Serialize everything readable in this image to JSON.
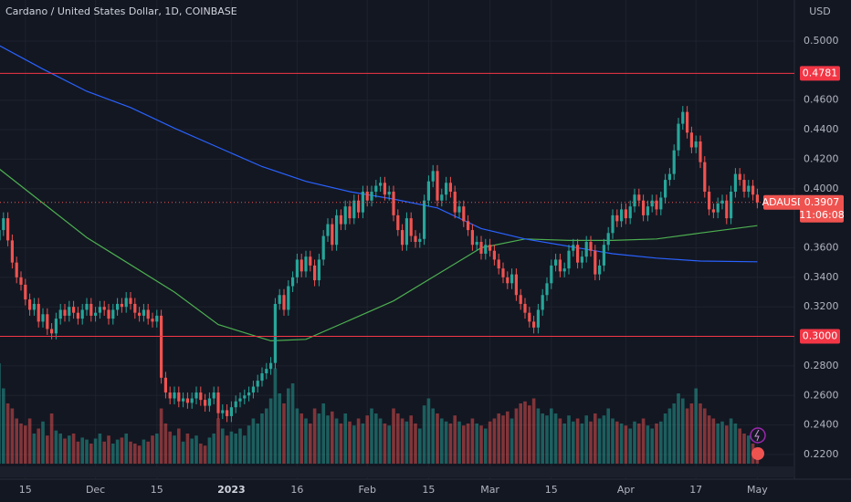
{
  "chart_data": {
    "type": "candlestick",
    "title": "Cardano / United States Dollar, 1D, COINBASE",
    "currency": "USD",
    "categories": [
      null,
      null,
      null,
      null,
      null,
      null,
      "15",
      null,
      null,
      null,
      null,
      null,
      null,
      null,
      null,
      null,
      null,
      null,
      null,
      null,
      null,
      null,
      "Dec",
      null,
      null,
      null,
      null,
      null,
      null,
      null,
      null,
      null,
      null,
      null,
      null,
      null,
      "15",
      null,
      null,
      null,
      null,
      null,
      null,
      null,
      null,
      null,
      null,
      null,
      null,
      null,
      null,
      null,
      null,
      "2023",
      null,
      null,
      null,
      null,
      null,
      null,
      null,
      null,
      null,
      null,
      null,
      null,
      null,
      null,
      "16",
      null,
      null,
      null,
      null,
      null,
      null,
      null,
      null,
      null,
      null,
      null,
      null,
      null,
      null,
      null,
      "Feb",
      null,
      null,
      null,
      null,
      null,
      null,
      null,
      null,
      null,
      null,
      null,
      null,
      null,
      "15",
      null,
      null,
      null,
      null,
      null,
      null,
      null,
      null,
      null,
      null,
      null,
      null,
      null,
      "Mar",
      null,
      null,
      null,
      null,
      null,
      null,
      null,
      null,
      null,
      null,
      null,
      null,
      null,
      "15",
      null,
      null,
      null,
      null,
      null,
      null,
      null,
      null,
      null,
      null,
      null,
      null,
      null,
      null,
      null,
      null,
      "Apr",
      null,
      null,
      null,
      null,
      null,
      null,
      null,
      null,
      null,
      null,
      null,
      null,
      null,
      null,
      null,
      "17",
      null,
      null,
      null,
      null,
      null,
      null,
      null,
      null,
      null,
      null,
      null,
      null,
      null,
      "May"
    ],
    "open": [
      0.365,
      0.372,
      0.38,
      0.365,
      0.35,
      0.34,
      0.335,
      0.325,
      0.318,
      0.322,
      0.31,
      0.315,
      0.305,
      0.302,
      0.312,
      0.318,
      0.314,
      0.32,
      0.316,
      0.312,
      0.318,
      0.322,
      0.314,
      0.316,
      0.32,
      0.318,
      0.312,
      0.318,
      0.322,
      0.32,
      0.326,
      0.322,
      0.316,
      0.314,
      0.318,
      0.312,
      0.31,
      0.314,
      0.272,
      0.262,
      0.258,
      0.262,
      0.256,
      0.258,
      0.255,
      0.258,
      0.262,
      0.257,
      0.253,
      0.258,
      0.262,
      0.248,
      0.25,
      0.246,
      0.252,
      0.256,
      0.258,
      0.26,
      0.262,
      0.266,
      0.27,
      0.275,
      0.278,
      0.282,
      0.322,
      0.328,
      0.318,
      0.334,
      0.34,
      0.352,
      0.344,
      0.354,
      0.348,
      0.338,
      0.352,
      0.368,
      0.376,
      0.362,
      0.382,
      0.376,
      0.388,
      0.38,
      0.392,
      0.384,
      0.398,
      0.392,
      0.398,
      0.402,
      0.404,
      0.396,
      0.398,
      0.382,
      0.372,
      0.362,
      0.38,
      0.368,
      0.364,
      0.366,
      0.392,
      0.405,
      0.412,
      0.392,
      0.396,
      0.404,
      0.398,
      0.384,
      0.388,
      0.378,
      0.372,
      0.362,
      0.364,
      0.356,
      0.362,
      0.358,
      0.352,
      0.346,
      0.34,
      0.336,
      0.342,
      0.328,
      0.322,
      0.316,
      0.31,
      0.306,
      0.318,
      0.328,
      0.336,
      0.348,
      0.352,
      0.344,
      0.346,
      0.358,
      0.362,
      0.35,
      0.354,
      0.364,
      0.358,
      0.342,
      0.348,
      0.362,
      0.37,
      0.382,
      0.378,
      0.386,
      0.38,
      0.388,
      0.396,
      0.392,
      0.382,
      0.388,
      0.392,
      0.386,
      0.394,
      0.406,
      0.41,
      0.426,
      0.444,
      0.452,
      0.438,
      0.428,
      0.432,
      0.418,
      0.398,
      0.386,
      0.384,
      0.39,
      0.392,
      0.38,
      0.398,
      0.41,
      0.406,
      0.398,
      0.402,
      0.396
    ],
    "high": [
      0.376,
      0.384,
      0.384,
      0.369,
      0.354,
      0.344,
      0.339,
      0.329,
      0.326,
      0.326,
      0.319,
      0.319,
      0.309,
      0.316,
      0.322,
      0.322,
      0.324,
      0.324,
      0.32,
      0.322,
      0.326,
      0.326,
      0.32,
      0.324,
      0.324,
      0.322,
      0.322,
      0.326,
      0.326,
      0.33,
      0.33,
      0.326,
      0.32,
      0.322,
      0.322,
      0.316,
      0.318,
      0.318,
      0.276,
      0.266,
      0.266,
      0.266,
      0.262,
      0.262,
      0.262,
      0.266,
      0.266,
      0.261,
      0.262,
      0.266,
      0.266,
      0.254,
      0.254,
      0.256,
      0.26,
      0.262,
      0.264,
      0.266,
      0.27,
      0.274,
      0.279,
      0.282,
      0.286,
      0.326,
      0.332,
      0.332,
      0.338,
      0.344,
      0.356,
      0.356,
      0.358,
      0.358,
      0.352,
      0.356,
      0.372,
      0.38,
      0.38,
      0.386,
      0.386,
      0.392,
      0.392,
      0.396,
      0.396,
      0.402,
      0.402,
      0.402,
      0.406,
      0.408,
      0.408,
      0.402,
      0.402,
      0.386,
      0.376,
      0.384,
      0.384,
      0.372,
      0.37,
      0.396,
      0.409,
      0.416,
      0.416,
      0.4,
      0.408,
      0.408,
      0.402,
      0.392,
      0.392,
      0.382,
      0.376,
      0.368,
      0.368,
      0.366,
      0.366,
      0.362,
      0.356,
      0.35,
      0.344,
      0.346,
      0.346,
      0.332,
      0.326,
      0.32,
      0.314,
      0.322,
      0.332,
      0.34,
      0.352,
      0.356,
      0.356,
      0.35,
      0.362,
      0.366,
      0.366,
      0.358,
      0.368,
      0.368,
      0.362,
      0.352,
      0.366,
      0.374,
      0.386,
      0.386,
      0.39,
      0.39,
      0.392,
      0.4,
      0.4,
      0.396,
      0.392,
      0.396,
      0.396,
      0.398,
      0.41,
      0.414,
      0.43,
      0.448,
      0.456,
      0.456,
      0.442,
      0.436,
      0.436,
      0.422,
      0.402,
      0.39,
      0.394,
      0.396,
      0.396,
      0.402,
      0.414,
      0.414,
      0.41,
      0.406,
      0.406,
      0.4
    ],
    "low": [
      0.361,
      0.368,
      0.361,
      0.346,
      0.336,
      0.331,
      0.321,
      0.314,
      0.314,
      0.306,
      0.306,
      0.301,
      0.298,
      0.298,
      0.308,
      0.31,
      0.31,
      0.312,
      0.308,
      0.308,
      0.314,
      0.31,
      0.31,
      0.312,
      0.314,
      0.308,
      0.308,
      0.314,
      0.316,
      0.316,
      0.318,
      0.312,
      0.31,
      0.31,
      0.308,
      0.306,
      0.306,
      0.268,
      0.258,
      0.254,
      0.254,
      0.252,
      0.252,
      0.251,
      0.251,
      0.254,
      0.253,
      0.249,
      0.249,
      0.254,
      0.244,
      0.244,
      0.242,
      0.242,
      0.248,
      0.252,
      0.254,
      0.256,
      0.258,
      0.262,
      0.266,
      0.271,
      0.274,
      0.278,
      0.318,
      0.314,
      0.314,
      0.33,
      0.336,
      0.34,
      0.34,
      0.344,
      0.334,
      0.334,
      0.348,
      0.364,
      0.358,
      0.358,
      0.372,
      0.372,
      0.376,
      0.376,
      0.38,
      0.38,
      0.388,
      0.388,
      0.394,
      0.398,
      0.392,
      0.392,
      0.378,
      0.368,
      0.358,
      0.358,
      0.364,
      0.36,
      0.36,
      0.362,
      0.388,
      0.401,
      0.388,
      0.388,
      0.392,
      0.394,
      0.38,
      0.38,
      0.374,
      0.368,
      0.358,
      0.358,
      0.352,
      0.352,
      0.354,
      0.348,
      0.342,
      0.336,
      0.332,
      0.332,
      0.324,
      0.318,
      0.312,
      0.306,
      0.302,
      0.302,
      0.314,
      0.324,
      0.332,
      0.344,
      0.34,
      0.34,
      0.342,
      0.354,
      0.346,
      0.346,
      0.35,
      0.354,
      0.338,
      0.338,
      0.344,
      0.358,
      0.366,
      0.374,
      0.374,
      0.376,
      0.376,
      0.384,
      0.388,
      0.378,
      0.378,
      0.384,
      0.382,
      0.382,
      0.39,
      0.402,
      0.406,
      0.422,
      0.44,
      0.434,
      0.424,
      0.424,
      0.414,
      0.394,
      0.382,
      0.38,
      0.38,
      0.386,
      0.376,
      0.376,
      0.394,
      0.402,
      0.394,
      0.394,
      0.392,
      0.3867
    ],
    "close": [
      0.372,
      0.38,
      0.365,
      0.35,
      0.34,
      0.335,
      0.325,
      0.318,
      0.322,
      0.31,
      0.315,
      0.305,
      0.302,
      0.312,
      0.318,
      0.314,
      0.32,
      0.316,
      0.312,
      0.318,
      0.322,
      0.314,
      0.316,
      0.32,
      0.318,
      0.312,
      0.318,
      0.322,
      0.32,
      0.326,
      0.322,
      0.316,
      0.314,
      0.318,
      0.312,
      0.31,
      0.314,
      0.272,
      0.262,
      0.258,
      0.262,
      0.256,
      0.258,
      0.255,
      0.258,
      0.262,
      0.257,
      0.253,
      0.258,
      0.262,
      0.248,
      0.25,
      0.246,
      0.252,
      0.256,
      0.258,
      0.26,
      0.262,
      0.266,
      0.27,
      0.275,
      0.278,
      0.282,
      0.322,
      0.328,
      0.318,
      0.334,
      0.34,
      0.352,
      0.344,
      0.354,
      0.348,
      0.338,
      0.352,
      0.368,
      0.376,
      0.362,
      0.382,
      0.376,
      0.388,
      0.38,
      0.392,
      0.384,
      0.398,
      0.392,
      0.398,
      0.402,
      0.404,
      0.396,
      0.398,
      0.382,
      0.372,
      0.362,
      0.38,
      0.368,
      0.364,
      0.366,
      0.392,
      0.405,
      0.412,
      0.392,
      0.396,
      0.404,
      0.398,
      0.384,
      0.388,
      0.378,
      0.372,
      0.362,
      0.364,
      0.356,
      0.362,
      0.358,
      0.352,
      0.346,
      0.34,
      0.336,
      0.342,
      0.328,
      0.322,
      0.316,
      0.31,
      0.306,
      0.318,
      0.328,
      0.336,
      0.348,
      0.352,
      0.344,
      0.346,
      0.358,
      0.362,
      0.35,
      0.354,
      0.364,
      0.358,
      0.342,
      0.348,
      0.362,
      0.37,
      0.382,
      0.378,
      0.386,
      0.38,
      0.388,
      0.396,
      0.392,
      0.382,
      0.388,
      0.392,
      0.386,
      0.394,
      0.406,
      0.41,
      0.426,
      0.444,
      0.452,
      0.438,
      0.428,
      0.432,
      0.418,
      0.398,
      0.386,
      0.384,
      0.39,
      0.392,
      0.38,
      0.398,
      0.41,
      0.406,
      0.398,
      0.402,
      0.396,
      0.3907
    ],
    "volume": [
      100,
      75,
      60,
      55,
      45,
      40,
      38,
      45,
      30,
      35,
      42,
      28,
      50,
      33,
      30,
      25,
      28,
      30,
      22,
      26,
      24,
      20,
      25,
      30,
      22,
      28,
      20,
      24,
      26,
      30,
      22,
      20,
      18,
      24,
      22,
      28,
      30,
      55,
      40,
      32,
      28,
      35,
      22,
      30,
      25,
      28,
      20,
      18,
      26,
      30,
      45,
      35,
      28,
      32,
      30,
      35,
      28,
      38,
      45,
      40,
      50,
      55,
      65,
      95,
      70,
      60,
      75,
      80,
      55,
      50,
      45,
      40,
      55,
      50,
      60,
      48,
      52,
      45,
      40,
      50,
      42,
      38,
      45,
      40,
      48,
      55,
      50,
      45,
      40,
      38,
      55,
      50,
      45,
      42,
      48,
      40,
      35,
      58,
      65,
      55,
      50,
      45,
      42,
      40,
      48,
      42,
      38,
      40,
      45,
      40,
      38,
      35,
      42,
      45,
      50,
      48,
      52,
      45,
      55,
      60,
      62,
      58,
      65,
      55,
      50,
      48,
      55,
      50,
      45,
      40,
      48,
      42,
      45,
      40,
      48,
      42,
      50,
      45,
      48,
      55,
      45,
      42,
      40,
      38,
      35,
      42,
      40,
      45,
      38,
      35,
      40,
      42,
      50,
      55,
      60,
      70,
      65,
      55,
      60,
      75,
      60,
      55,
      48,
      45,
      40,
      42,
      38,
      45,
      40,
      35,
      30,
      28,
      20,
      15
    ],
    "up_color": "#26a69a",
    "down_color": "#ef5350",
    "moving_averages": [
      {
        "color": "#4caf50",
        "x": [
          0,
          20,
          40,
          50,
          62,
          70,
          80,
          90,
          100,
          110,
          120,
          130,
          140,
          150,
          160,
          173
        ],
        "values": [
          0.4135,
          0.367,
          0.33,
          0.308,
          0.297,
          0.298,
          0.311,
          0.324,
          0.342,
          0.36,
          0.366,
          0.365,
          0.365,
          0.366,
          0.37,
          0.375
        ]
      },
      {
        "color": "#2962ff",
        "x": [
          0,
          10,
          20,
          30,
          40,
          50,
          60,
          70,
          80,
          90,
          100,
          110,
          120,
          130,
          140,
          150,
          160,
          173
        ],
        "values": [
          0.497,
          0.481,
          0.466,
          0.455,
          0.441,
          0.428,
          0.415,
          0.405,
          0.398,
          0.393,
          0.387,
          0.373,
          0.366,
          0.361,
          0.356,
          0.353,
          0.351,
          0.3505
        ]
      }
    ],
    "levels": [
      {
        "value": 0.4781,
        "label": "0.4781"
      },
      {
        "value": 0.3,
        "label": "0.3000"
      }
    ],
    "last_price": {
      "symbol": "ADAUSD",
      "value": 0.3907,
      "label": "0.3907",
      "countdown": "11:06:08"
    },
    "ylim": [
      0.2033,
      0.5278
    ],
    "yticks": [
      {
        "value": 0.5,
        "label": "0.5000"
      },
      {
        "value": 0.46,
        "label": "0.4600"
      },
      {
        "value": 0.44,
        "label": "0.4400"
      },
      {
        "value": 0.42,
        "label": "0.4200"
      },
      {
        "value": 0.4,
        "label": "0.4000"
      },
      {
        "value": 0.36,
        "label": "0.3600"
      },
      {
        "value": 0.34,
        "label": "0.3400"
      },
      {
        "value": 0.32,
        "label": "0.3200"
      },
      {
        "value": 0.28,
        "label": "0.2800"
      },
      {
        "value": 0.26,
        "label": "0.2600"
      },
      {
        "value": 0.24,
        "label": "0.2400"
      },
      {
        "value": 0.22,
        "label": "0.2200"
      }
    ],
    "grid": true
  }
}
